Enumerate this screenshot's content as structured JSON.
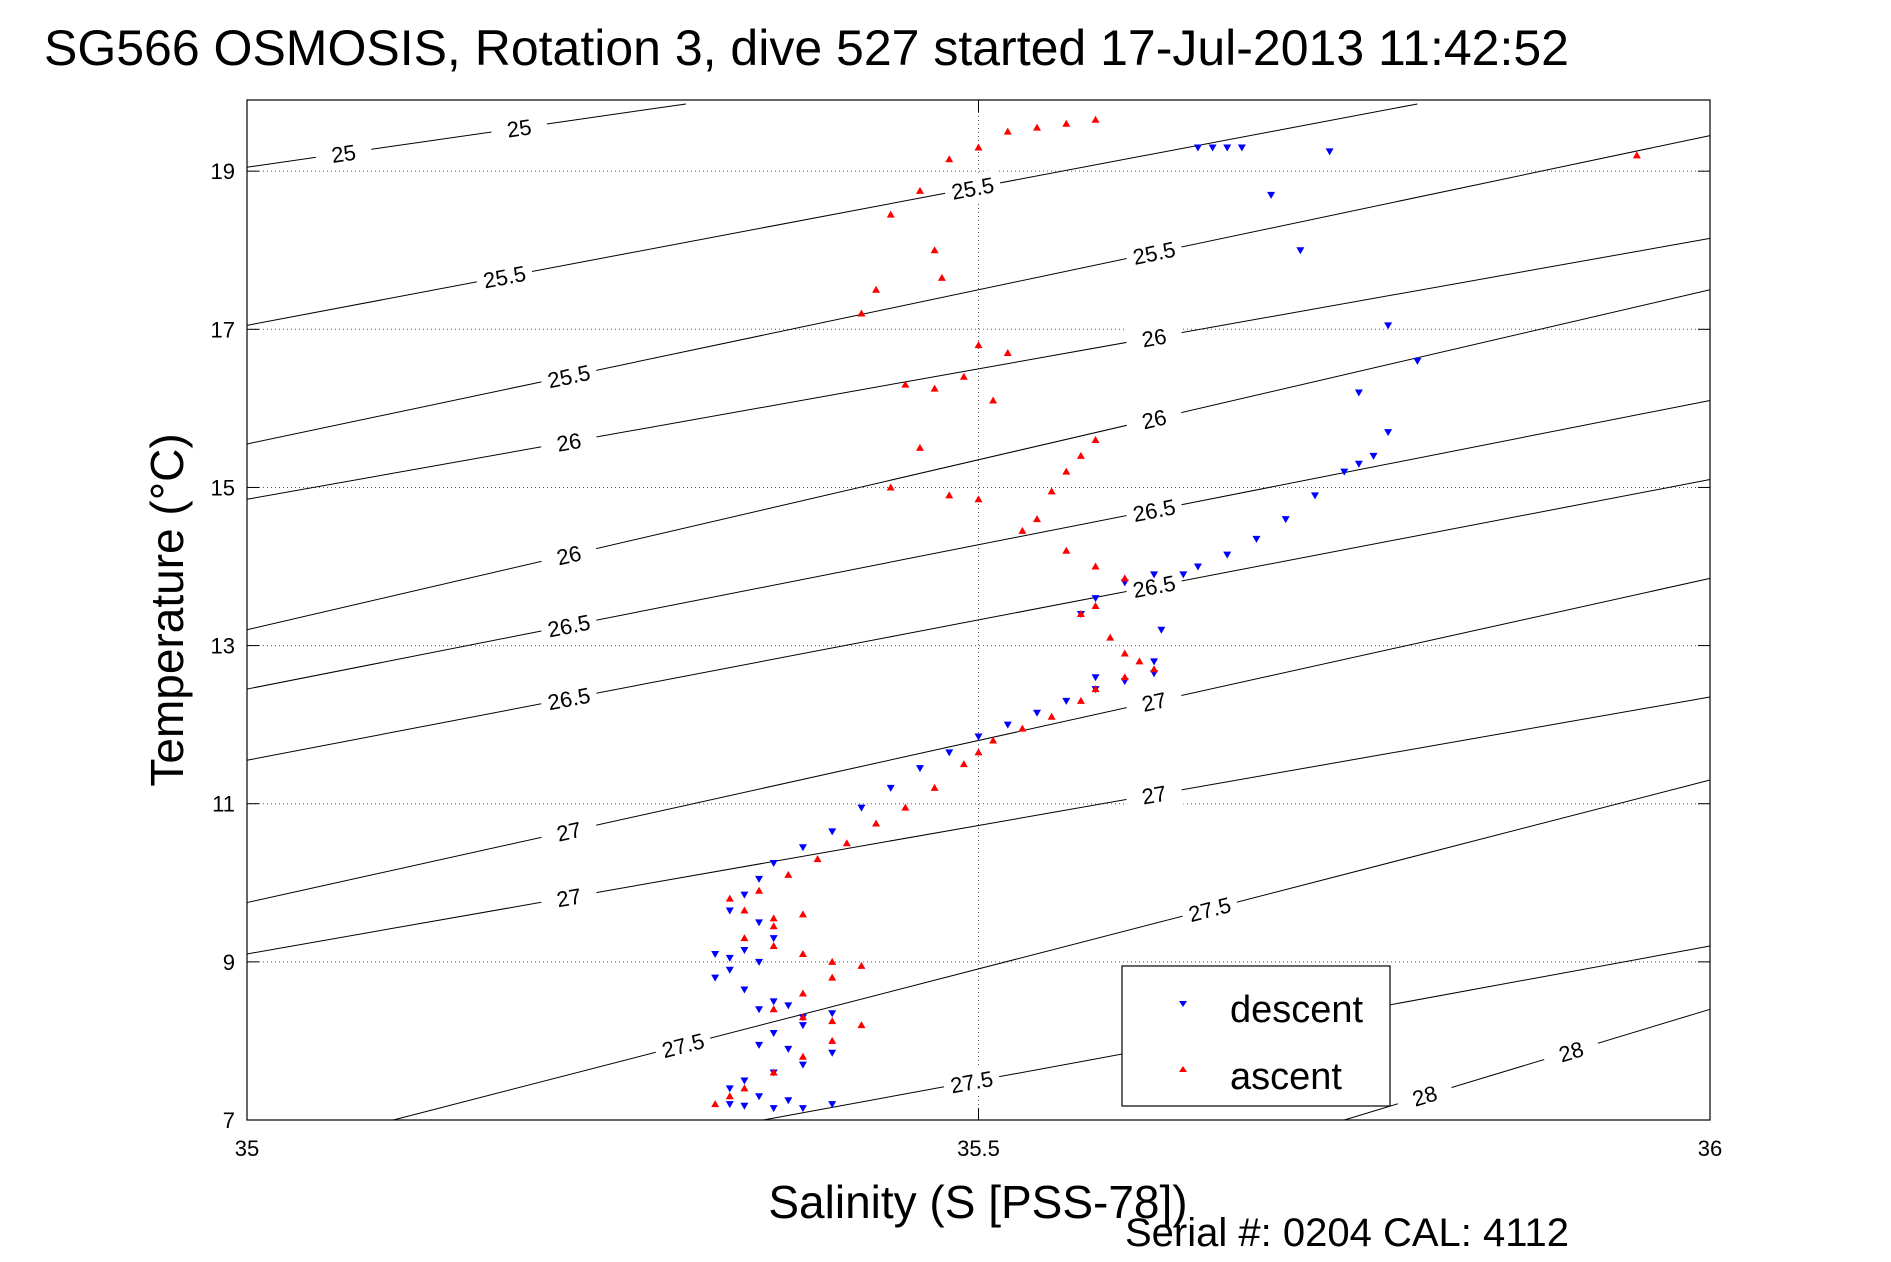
{
  "chart_data": {
    "type": "scatter",
    "title": "SG566 OSMOSIS, Rotation 3, dive 527 started 17-Jul-2013 11:42:52",
    "xlabel": "Salinity (S [PSS-78])",
    "ylabel": "Temperature (°C)",
    "xlim": [
      35,
      36
    ],
    "ylim": [
      7,
      19.9
    ],
    "xticks": [
      35,
      35.5,
      36
    ],
    "yticks": [
      7,
      9,
      11,
      13,
      15,
      17,
      19
    ],
    "grid": true,
    "legend": {
      "placement": "bottom-right"
    },
    "footer": "Serial #: 0204  CAL: 4112",
    "density_contours": [
      {
        "label": "25",
        "x": [
          35.0,
          35.3
        ],
        "y": [
          19.05,
          19.85
        ]
      },
      {
        "label": "25.5",
        "x": [
          35.0,
          35.8
        ],
        "y": [
          17.05,
          19.85
        ]
      },
      {
        "label": "25.5",
        "x": [
          35.0,
          36.0
        ],
        "y": [
          15.55,
          19.45
        ]
      },
      {
        "label": "26",
        "x": [
          35.0,
          36.0
        ],
        "y": [
          14.85,
          18.15
        ]
      },
      {
        "label": "26",
        "x": [
          35.0,
          36.0
        ],
        "y": [
          13.2,
          17.5
        ]
      },
      {
        "label": "26.5",
        "x": [
          35.0,
          36.0
        ],
        "y": [
          12.45,
          16.1
        ]
      },
      {
        "label": "26.5",
        "x": [
          35.0,
          36.0
        ],
        "y": [
          11.55,
          15.1
        ]
      },
      {
        "label": "27",
        "x": [
          35.0,
          36.0
        ],
        "y": [
          9.75,
          13.85
        ]
      },
      {
        "label": "27",
        "x": [
          35.0,
          36.0
        ],
        "y": [
          9.1,
          12.35
        ]
      },
      {
        "label": "27.5",
        "x": [
          35.1,
          36.0
        ],
        "y": [
          7.0,
          11.3
        ]
      },
      {
        "label": "27.5",
        "x": [
          35.0,
          36.0
        ],
        "y": [
          5.8,
          9.2
        ]
      },
      {
        "label": "28",
        "x": [
          35.75,
          36.0
        ],
        "y": [
          7.0,
          8.4
        ]
      }
    ],
    "series": [
      {
        "name": "descent",
        "color": "#0000ff",
        "marker": "triangle-down",
        "x": [
          35.65,
          35.66,
          35.67,
          35.68,
          35.7,
          35.72,
          35.74,
          35.76,
          35.78,
          35.8,
          35.78,
          35.77,
          35.76,
          35.75,
          35.73,
          35.71,
          35.69,
          35.67,
          35.65,
          35.64,
          35.62,
          35.6,
          35.58,
          35.57,
          35.58,
          35.62,
          35.625,
          35.62,
          35.6,
          35.58,
          35.56,
          35.54,
          35.52,
          35.5,
          35.48,
          35.46,
          35.44,
          35.42,
          35.4,
          35.38,
          35.36,
          35.35,
          35.34,
          35.33,
          35.35,
          35.36,
          35.34,
          35.32,
          35.33,
          35.35,
          35.33,
          35.32,
          35.34,
          35.36,
          35.38,
          35.35,
          35.37,
          35.4,
          35.38,
          35.36,
          35.35,
          35.37,
          35.4,
          35.38,
          35.36,
          35.34,
          35.33,
          35.35,
          35.37,
          35.4,
          35.38,
          35.36,
          35.34,
          35.33
        ],
        "y": [
          19.3,
          19.3,
          19.3,
          19.3,
          18.7,
          18.0,
          19.25,
          16.2,
          17.05,
          16.6,
          15.7,
          15.4,
          15.3,
          15.2,
          14.9,
          14.6,
          14.35,
          14.15,
          14.0,
          13.9,
          13.9,
          13.8,
          13.6,
          13.4,
          12.6,
          12.8,
          13.2,
          12.65,
          12.55,
          12.45,
          12.3,
          12.15,
          12.0,
          11.85,
          11.65,
          11.45,
          11.2,
          10.95,
          10.65,
          10.45,
          10.25,
          10.05,
          9.85,
          9.65,
          9.5,
          9.3,
          9.15,
          9.1,
          9.05,
          9.0,
          8.9,
          8.8,
          8.65,
          8.5,
          8.3,
          8.4,
          8.45,
          8.35,
          8.2,
          8.1,
          7.95,
          7.9,
          7.85,
          7.7,
          7.6,
          7.5,
          7.4,
          7.3,
          7.25,
          7.2,
          7.15,
          7.15,
          7.18,
          7.2
        ]
      },
      {
        "name": "ascent",
        "color": "#ff0000",
        "marker": "triangle-up",
        "x": [
          35.95,
          35.58,
          35.56,
          35.54,
          35.52,
          35.5,
          35.48,
          35.46,
          35.44,
          35.47,
          35.475,
          35.43,
          35.42,
          35.45,
          35.47,
          35.49,
          35.5,
          35.52,
          35.51,
          35.46,
          35.44,
          35.48,
          35.5,
          35.54,
          35.56,
          35.58,
          35.57,
          35.55,
          35.53,
          35.56,
          35.58,
          35.6,
          35.58,
          35.57,
          35.59,
          35.6,
          35.61,
          35.62,
          35.6,
          35.58,
          35.57,
          35.55,
          35.53,
          35.51,
          35.5,
          35.49,
          35.47,
          35.45,
          35.43,
          35.41,
          35.39,
          35.37,
          35.35,
          35.33,
          35.34,
          35.36,
          35.38,
          35.36,
          35.34,
          35.36,
          35.38,
          35.4,
          35.42,
          35.4,
          35.38,
          35.36,
          35.38,
          35.4,
          35.42,
          35.4,
          35.38,
          35.36,
          35.34,
          35.33,
          35.32
        ],
        "y": [
          19.2,
          19.65,
          19.6,
          19.55,
          19.5,
          19.3,
          19.15,
          18.75,
          18.45,
          18.0,
          17.65,
          17.5,
          17.2,
          16.3,
          16.25,
          16.4,
          16.8,
          16.7,
          16.1,
          15.5,
          15.0,
          14.9,
          14.85,
          14.6,
          15.2,
          15.6,
          15.4,
          14.95,
          14.45,
          14.2,
          14.0,
          13.85,
          13.5,
          13.4,
          13.1,
          12.9,
          12.8,
          12.7,
          12.6,
          12.45,
          12.3,
          12.1,
          11.95,
          11.8,
          11.65,
          11.5,
          11.2,
          10.95,
          10.75,
          10.5,
          10.3,
          10.1,
          9.9,
          9.8,
          9.65,
          9.55,
          9.6,
          9.45,
          9.3,
          9.2,
          9.1,
          9.0,
          8.95,
          8.8,
          8.6,
          8.4,
          8.3,
          8.25,
          8.2,
          8.0,
          7.8,
          7.6,
          7.4,
          7.3,
          7.2
        ]
      }
    ]
  }
}
